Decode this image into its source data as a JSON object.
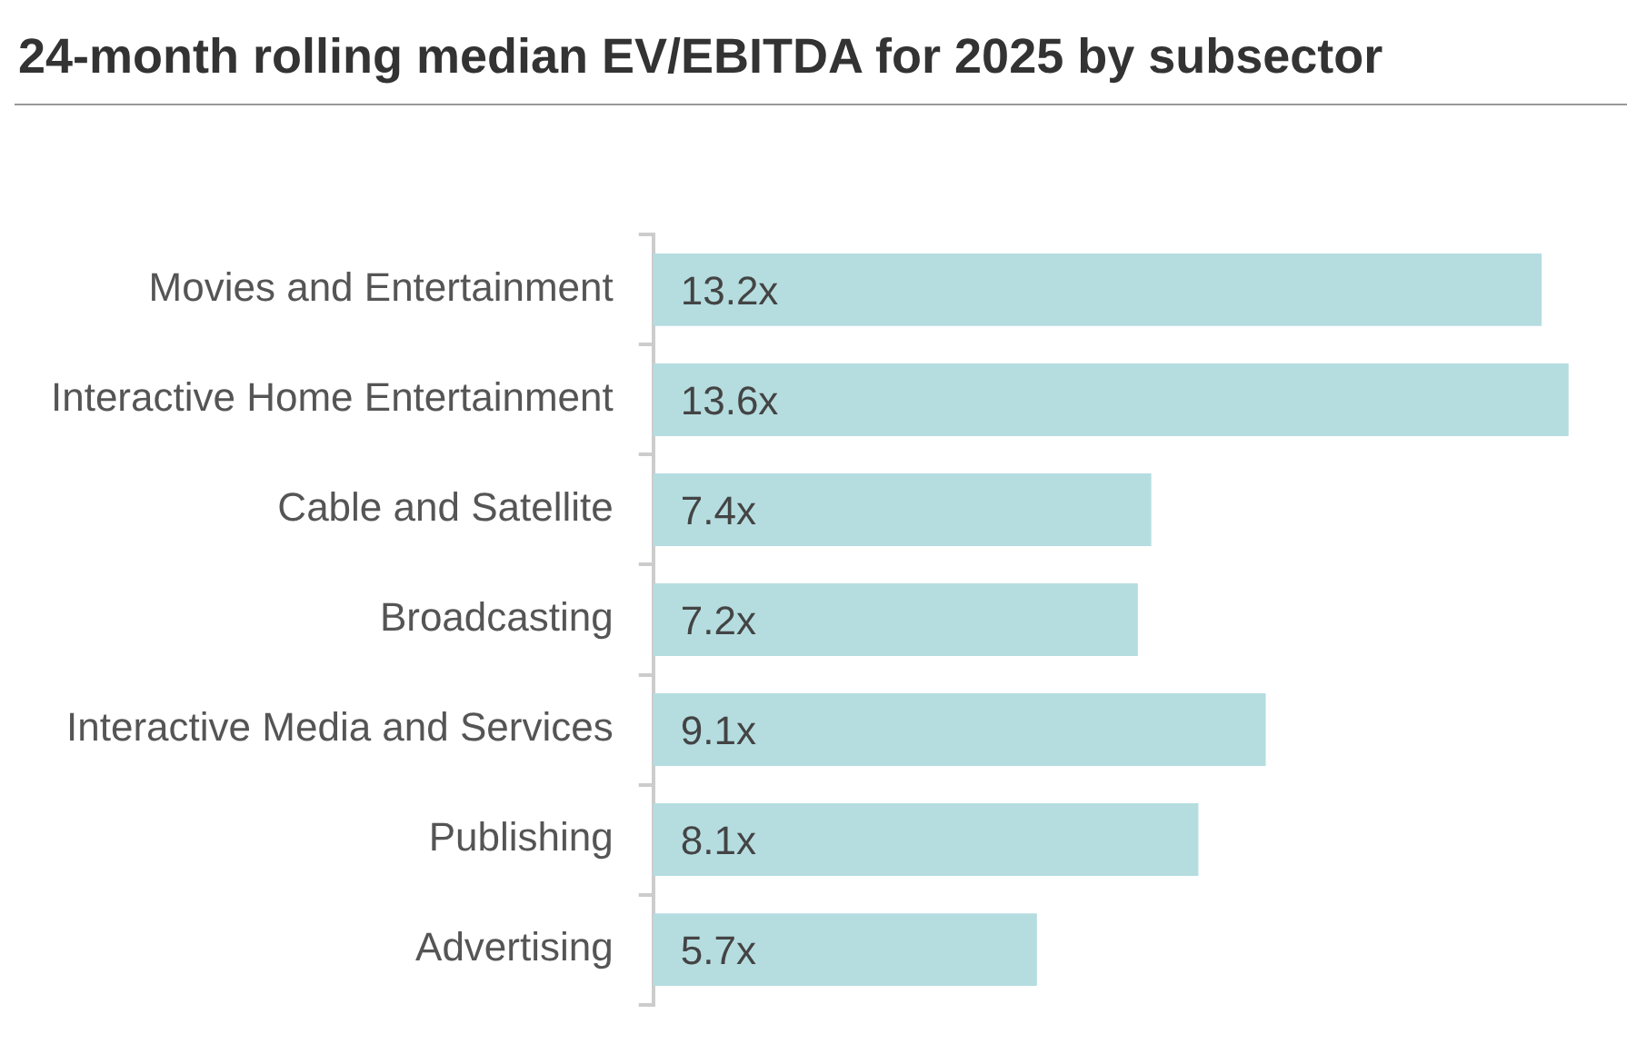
{
  "chart_data": {
    "type": "bar",
    "orientation": "horizontal",
    "title": "24-month rolling median EV/EBITDA for 2025 by subsector",
    "categories": [
      "Movies and Entertainment",
      "Interactive Home Entertainment",
      "Cable and Satellite",
      "Broadcasting",
      "Interactive Media and Services",
      "Publishing",
      "Advertising"
    ],
    "values": [
      13.2,
      13.6,
      7.4,
      7.2,
      9.1,
      8.1,
      5.7
    ],
    "value_labels": [
      "13.2x",
      "13.6x",
      "7.4x",
      "7.2x",
      "9.1x",
      "8.1x",
      "5.7x"
    ],
    "color": "#b5dde0"
  }
}
